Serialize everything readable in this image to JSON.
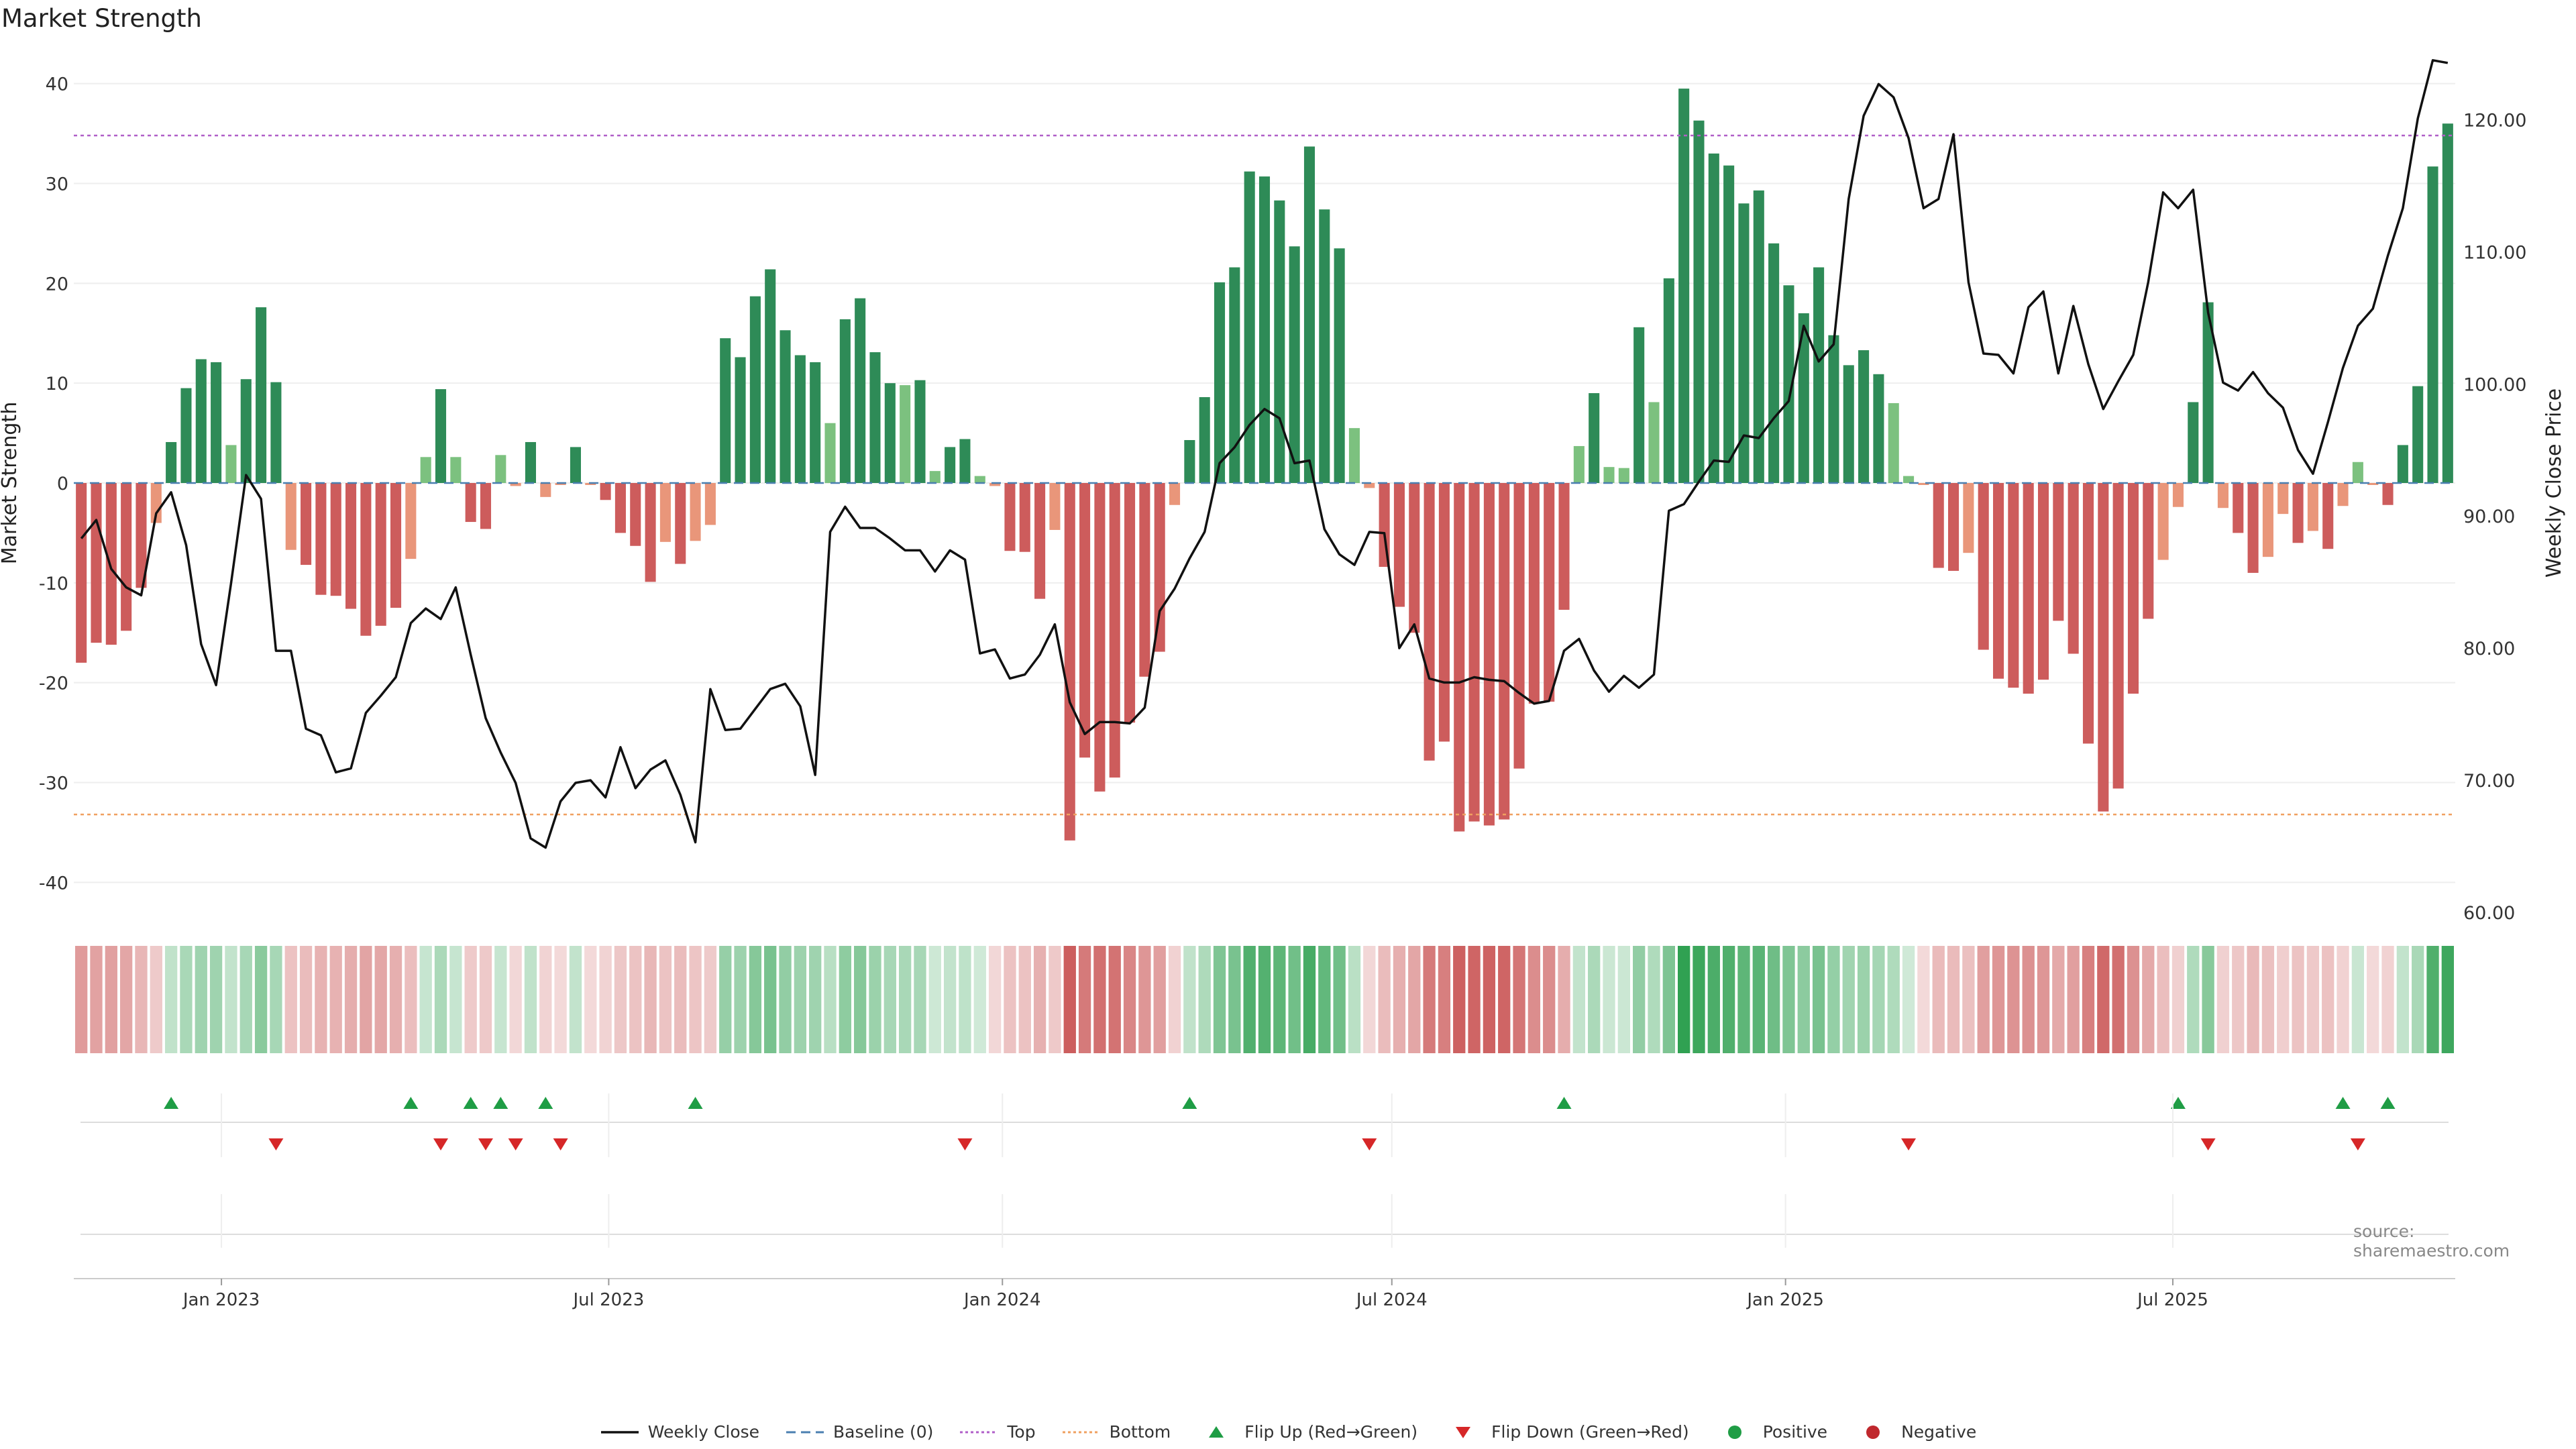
{
  "title": "Market Strength",
  "source": "source: sharemaestro.com",
  "colors": {
    "pos_strong": "#2e8b57",
    "pos_weak": "#7cc17f",
    "neg_strong": "#cd5c5c",
    "neg_weak": "#e9967a",
    "price": "#111111",
    "top": "#b05fc8",
    "bottom": "#f0a060",
    "baseline": "#4a7fb0",
    "flip_up": "#1f9d45",
    "flip_down": "#d62728",
    "grid": "#eeeeee"
  },
  "legend": [
    {
      "label": "Weekly Close",
      "symbol": "line"
    },
    {
      "label": "Baseline (0)",
      "symbol": "dash"
    },
    {
      "label": "Top",
      "symbol": "dotted-purple"
    },
    {
      "label": "Bottom",
      "symbol": "dotted-orange"
    },
    {
      "label": "Flip Up (Red→Green)",
      "symbol": "triangle-up"
    },
    {
      "label": "Flip Down (Green→Red)",
      "symbol": "triangle-down"
    },
    {
      "label": "Positive",
      "symbol": "dot-green"
    },
    {
      "label": "Negative",
      "symbol": "dot-red"
    }
  ],
  "chart_data": {
    "type": "bar",
    "title": "Market Strength",
    "ylabel": "Market Strength",
    "y2label": "Weekly Close Price",
    "ylim": [
      -43,
      43
    ],
    "y2lim": [
      60,
      125
    ],
    "yticks": [
      -40,
      -30,
      -20,
      -10,
      0,
      10,
      20,
      30,
      40
    ],
    "y2ticks": [
      "60.00",
      "70.00",
      "80.00",
      "90.00",
      "100.00",
      "110.00",
      "120.00"
    ],
    "top": 34.8,
    "bottom": -33.2,
    "x_start": "2022-10-24",
    "interval": "weekly",
    "xticks": [
      "Jan 2023",
      "Jul 2023",
      "Jan 2024",
      "Jul 2024",
      "Jan 2025",
      "Jul 2025"
    ],
    "strength": [
      -18,
      -16,
      -16.2,
      -14.8,
      -10.5,
      -4,
      4.1,
      9.5,
      12.4,
      12.1,
      3.8,
      10.4,
      17.6,
      10.1,
      -6.7,
      -8.2,
      -11.2,
      -11.3,
      -12.6,
      -15.3,
      -14.3,
      -12.5,
      -7.6,
      2.6,
      9.4,
      2.6,
      -3.9,
      -4.6,
      2.8,
      -0.3,
      4.1,
      -1.4,
      -0.2,
      3.6,
      -0.2,
      -1.7,
      -5,
      -6.3,
      -9.9,
      -5.9,
      -8.1,
      -5.8,
      -4.2,
      14.5,
      12.6,
      18.7,
      21.4,
      15.3,
      12.8,
      12.1,
      6,
      16.4,
      18.5,
      13.1,
      10,
      9.8,
      10.3,
      1.2,
      3.6,
      4.4,
      0.7,
      -0.3,
      -6.8,
      -6.9,
      -11.6,
      -4.7,
      -35.8,
      -27.5,
      -30.9,
      -29.5,
      -24,
      -19.4,
      -16.9,
      -2.2,
      4.3,
      8.6,
      20.1,
      21.6,
      31.2,
      30.7,
      28.3,
      23.7,
      33.7,
      27.4,
      23.5,
      5.5,
      -0.5,
      -8.4,
      -12.4,
      -15,
      -27.8,
      -25.9,
      -34.9,
      -33.9,
      -34.3,
      -33.7,
      -28.6,
      -22.1,
      -21.9,
      -12.7,
      3.7,
      9,
      1.6,
      1.5,
      15.6,
      8.1,
      20.5,
      39.5,
      36.3,
      33,
      31.8,
      28,
      29.3,
      24,
      19.8,
      17,
      21.6,
      14.8,
      11.8,
      13.3,
      10.9,
      8,
      0.7,
      -0.2,
      -8.5,
      -8.8,
      -7,
      -16.7,
      -19.6,
      -20.5,
      -21.1,
      -19.7,
      -13.8,
      -17.1,
      -26.1,
      -32.9,
      -30.6,
      -21.1,
      -13.6,
      -7.7,
      -2.4,
      8.1,
      18.1,
      -2.5,
      -5,
      -9,
      -7.4,
      -3.1,
      -6,
      -4.8,
      -6.6,
      -2.3,
      2.1,
      -0.2,
      -2.2,
      3.8,
      9.7,
      31.7,
      36
    ],
    "close": [
      88.3,
      89.7,
      86,
      84.6,
      84,
      90.2,
      91.8,
      87.8,
      80.3,
      77.2,
      84.9,
      93.1,
      91.3,
      79.8,
      79.8,
      73.9,
      73.4,
      70.6,
      70.9,
      75.1,
      76.4,
      77.8,
      81.9,
      83,
      82.2,
      84.6,
      79.5,
      74.7,
      72.1,
      69.8,
      65.6,
      64.9,
      68.4,
      69.8,
      70,
      68.7,
      72.5,
      69.4,
      70.8,
      71.5,
      68.9,
      65.3,
      76.9,
      73.8,
      73.9,
      75.4,
      76.9,
      77.3,
      75.6,
      70.4,
      88.8,
      90.7,
      89.1,
      89.1,
      88.3,
      87.4,
      87.4,
      85.8,
      87.4,
      86.7,
      79.6,
      79.9,
      77.7,
      78,
      79.5,
      81.8,
      75.9,
      73.5,
      74.4,
      74.4,
      74.3,
      75.5,
      82.8,
      84.5,
      86.8,
      88.8,
      94,
      95.2,
      96.9,
      98.1,
      97.4,
      94,
      94.2,
      89,
      87.1,
      86.3,
      88.8,
      88.7,
      80,
      81.8,
      77.7,
      77.4,
      77.4,
      77.8,
      77.6,
      77.5,
      76.6,
      75.8,
      76,
      79.8,
      80.7,
      78.3,
      76.7,
      77.9,
      77,
      78,
      90.4,
      90.9,
      92.6,
      94.2,
      94.1,
      96.1,
      95.9,
      97.4,
      98.7,
      104.4,
      101.7,
      103,
      114,
      120.3,
      122.7,
      121.7,
      118.6,
      113.3,
      114,
      118.9,
      107.7,
      102.3,
      102.2,
      100.8,
      105.8,
      107,
      100.8,
      105.9,
      101.5,
      98.1,
      100.2,
      102.2,
      107.7,
      114.5,
      113.3,
      114.7,
      105.4,
      100.1,
      99.5,
      100.9,
      99.3,
      98.2,
      95,
      93.2,
      97.1,
      101.2,
      104.4,
      105.7,
      109.7,
      113.3,
      120.1,
      124.5,
      124.3
    ]
  },
  "flip_up_dates": [
    "2022-12-05",
    "2023-03-27",
    "2023-04-24",
    "2023-05-08",
    "2023-05-29",
    "2023-08-07",
    "2024-03-25",
    "2024-09-16",
    "2025-06-30",
    "2025-09-15",
    "2025-10-06"
  ],
  "flip_down_dates": [
    "2023-01-23",
    "2023-04-10",
    "2023-05-01",
    "2023-05-15",
    "2023-06-05",
    "2023-12-11",
    "2024-06-17",
    "2025-02-24",
    "2025-07-14",
    "2025-09-22"
  ]
}
